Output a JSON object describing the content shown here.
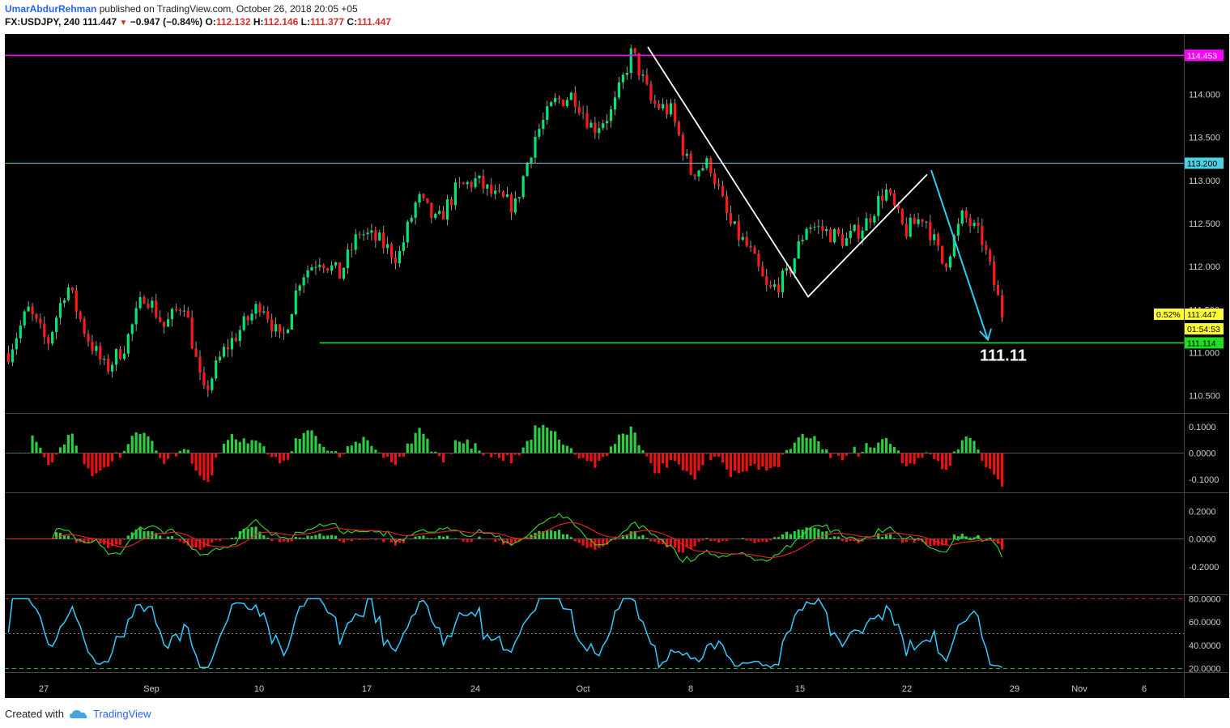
{
  "header": {
    "author": "UmarAbdurRehman",
    "published_text": "published on TradingView.com, October 26, 2018 20:05 +05",
    "symbol": "FX:USDJPY, 240",
    "last_price": "111.447",
    "change": "−0.947 (−0.84%)",
    "o_label": "O:",
    "o_value": "112.132",
    "h_label": "H:",
    "h_value": "112.146",
    "l_label": "L:",
    "l_value": "111.377",
    "c_label": "C:",
    "c_value": "111.447"
  },
  "footer": {
    "created_with": "Created with",
    "brand": "TradingView"
  },
  "colors": {
    "up": "#00e676",
    "down": "#ff1a1a",
    "magenta": "#ff00ff",
    "cyan_line": "#4dd0e1",
    "support": "#22dd22",
    "rsi": "#33ccff",
    "background": "#000000"
  },
  "chart_data": [
    {
      "type": "candlestick",
      "symbol": "FX:USDJPY",
      "timeframe": "240",
      "x_tick_labels": [
        "27",
        "Sep",
        "10",
        "17",
        "24",
        "Oct",
        "8",
        "15",
        "22",
        "29",
        "Nov",
        "6"
      ],
      "y_tick_labels": [
        "110.500",
        "111.000",
        "111.500",
        "112.000",
        "112.500",
        "113.000",
        "113.500",
        "114.000"
      ],
      "ylim": [
        110.3,
        114.7
      ],
      "price_path": [
        111.0,
        111.5,
        111.1,
        111.8,
        111.2,
        110.8,
        111.1,
        111.7,
        111.3,
        111.6,
        110.5,
        111.0,
        111.3,
        111.6,
        111.1,
        111.9,
        112.1,
        111.9,
        112.4,
        112.3,
        112.1,
        112.8,
        112.5,
        112.9,
        113.0,
        112.8,
        112.7,
        113.5,
        113.9,
        114.0,
        113.6,
        113.8,
        114.5,
        113.9,
        113.8,
        113.1,
        113.2,
        112.5,
        112.2,
        111.7,
        111.9,
        112.5,
        112.4,
        112.3,
        112.5,
        112.9,
        112.4,
        112.6,
        112.0,
        112.6,
        112.3,
        111.45
      ],
      "annotation_text": "111.11",
      "price_labels": {
        "resistance_top": "114.453",
        "resistance_mid": "113.200",
        "support": "111.114",
        "current": "111.447",
        "percent": "0.52%",
        "countdown": "01:54:53"
      }
    },
    {
      "type": "bar",
      "y_tick_labels": [
        "0.1000",
        "0.0000",
        "-0.1000"
      ],
      "ylim": [
        -0.15,
        0.15
      ]
    },
    {
      "type": "bar+line",
      "y_tick_labels": [
        "0.2000",
        "0.0000",
        "-0.2000"
      ],
      "ylim": [
        -0.4,
        0.33
      ]
    },
    {
      "type": "line",
      "y_tick_labels": [
        "80.0000",
        "60.0000",
        "40.0000",
        "20.0000"
      ],
      "ylim": [
        17,
        83
      ],
      "levels": [
        80,
        50,
        20
      ]
    }
  ]
}
